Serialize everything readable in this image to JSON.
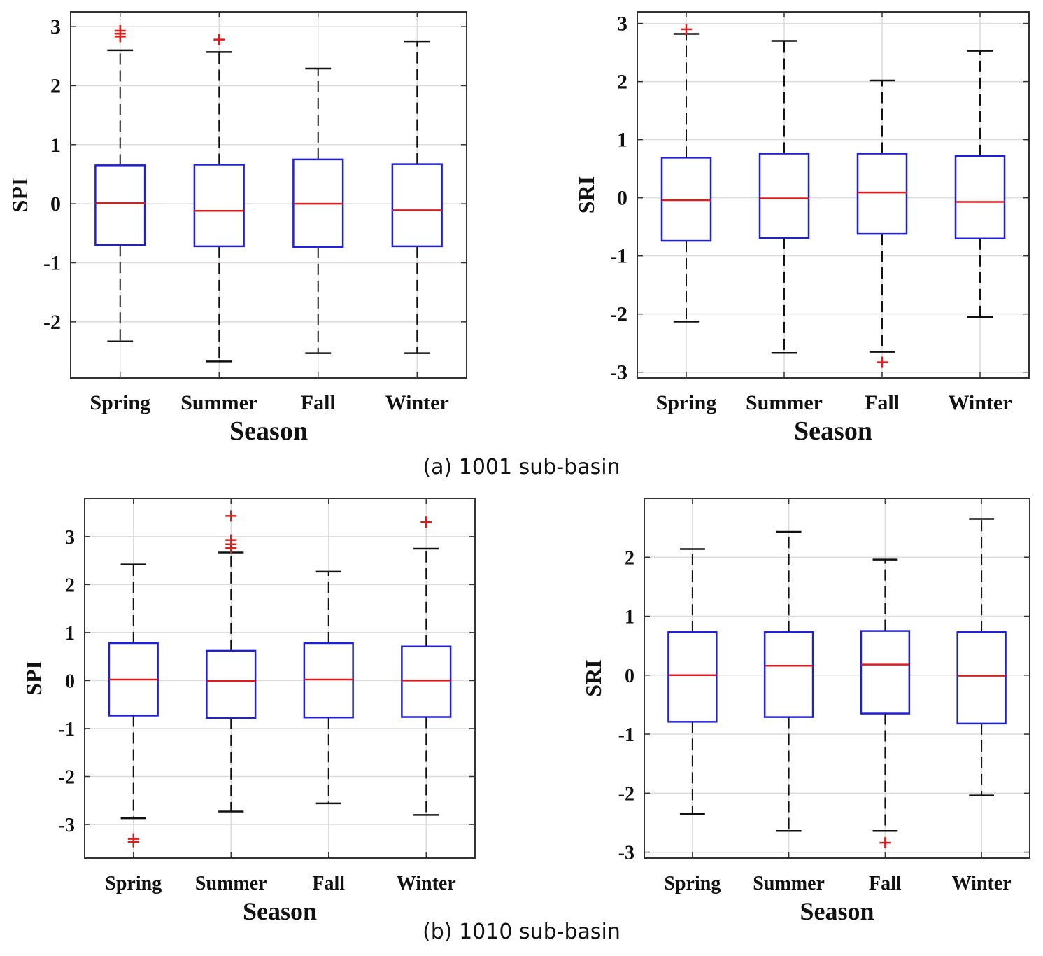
{
  "captions": {
    "a": "(a) 1001 sub-basin",
    "b": "(b) 1010 sub-basin"
  },
  "colors": {
    "box": "#1f1fd6",
    "median": "#e01b1b",
    "whisker": "#111111",
    "outlier": "#e01b1b",
    "grid": "#dcdcdc",
    "axes": "#333333"
  },
  "chart_data": [
    {
      "type": "box",
      "panel": "a-left",
      "title": "",
      "xlabel": "Season",
      "ylabel": "SPI",
      "categories": [
        "Spring",
        "Summer",
        "Fall",
        "Winter"
      ],
      "ylim": [
        -2.95,
        3.25
      ],
      "yticks": [
        -2,
        -1,
        0,
        1,
        2,
        3
      ],
      "ytick_labels": [
        "-2",
        "-1",
        "0",
        "1",
        "2",
        "3"
      ],
      "grid": true,
      "boxes": [
        {
          "min": -2.33,
          "q1": -0.7,
          "median": 0.01,
          "q3": 0.65,
          "max": 2.6,
          "outliers": [
            2.83,
            2.88,
            2.93
          ]
        },
        {
          "min": -2.67,
          "q1": -0.72,
          "median": -0.12,
          "q3": 0.66,
          "max": 2.57,
          "outliers": [
            2.78
          ]
        },
        {
          "min": -2.53,
          "q1": -0.73,
          "median": 0.0,
          "q3": 0.75,
          "max": 2.29,
          "outliers": []
        },
        {
          "min": -2.53,
          "q1": -0.72,
          "median": -0.11,
          "q3": 0.67,
          "max": 2.75,
          "outliers": []
        }
      ]
    },
    {
      "type": "box",
      "panel": "a-right",
      "title": "",
      "xlabel": "Season",
      "ylabel": "SRI",
      "categories": [
        "Spring",
        "Summer",
        "Fall",
        "Winter"
      ],
      "ylim": [
        -3.1,
        3.2
      ],
      "yticks": [
        -3,
        -2,
        -1,
        0,
        1,
        2,
        3
      ],
      "ytick_labels": [
        "-3",
        "-2",
        "-1",
        "0",
        "1",
        "2",
        "3"
      ],
      "grid": true,
      "boxes": [
        {
          "min": -2.13,
          "q1": -0.74,
          "median": -0.04,
          "q3": 0.69,
          "max": 2.82,
          "outliers": [
            2.9
          ]
        },
        {
          "min": -2.67,
          "q1": -0.69,
          "median": -0.01,
          "q3": 0.76,
          "max": 2.7,
          "outliers": []
        },
        {
          "min": -2.65,
          "q1": -0.62,
          "median": 0.09,
          "q3": 0.76,
          "max": 2.02,
          "outliers": [
            -2.83
          ]
        },
        {
          "min": -2.05,
          "q1": -0.7,
          "median": -0.07,
          "q3": 0.72,
          "max": 2.53,
          "outliers": []
        }
      ]
    },
    {
      "type": "box",
      "panel": "b-left",
      "title": "",
      "xlabel": "Season",
      "ylabel": "SPI",
      "categories": [
        "Spring",
        "Summer",
        "Fall",
        "Winter"
      ],
      "ylim": [
        -3.7,
        3.8
      ],
      "yticks": [
        -3,
        -2,
        -1,
        0,
        1,
        2,
        3
      ],
      "ytick_labels": [
        "-3",
        "-2",
        "-1",
        "0",
        "1",
        "2",
        "3"
      ],
      "grid": true,
      "boxes": [
        {
          "min": -2.87,
          "q1": -0.73,
          "median": 0.02,
          "q3": 0.78,
          "max": 2.42,
          "outliers": [
            -3.3,
            -3.36
          ]
        },
        {
          "min": -2.73,
          "q1": -0.78,
          "median": -0.01,
          "q3": 0.62,
          "max": 2.67,
          "outliers": [
            2.76,
            2.84,
            2.93,
            3.43
          ]
        },
        {
          "min": -2.56,
          "q1": -0.77,
          "median": 0.02,
          "q3": 0.78,
          "max": 2.27,
          "outliers": []
        },
        {
          "min": -2.8,
          "q1": -0.76,
          "median": 0.0,
          "q3": 0.71,
          "max": 2.75,
          "outliers": [
            3.3
          ]
        }
      ]
    },
    {
      "type": "box",
      "panel": "b-right",
      "title": "",
      "xlabel": "Season",
      "ylabel": "SRI",
      "categories": [
        "Spring",
        "Summer",
        "Fall",
        "Winter"
      ],
      "ylim": [
        -3.1,
        3.0
      ],
      "yticks": [
        -3,
        -2,
        -1,
        0,
        1,
        2
      ],
      "ytick_labels": [
        "-3",
        "-2",
        "-1",
        "0",
        "1",
        "2"
      ],
      "grid": true,
      "boxes": [
        {
          "min": -2.35,
          "q1": -0.79,
          "median": 0.0,
          "q3": 0.73,
          "max": 2.14,
          "outliers": []
        },
        {
          "min": -2.64,
          "q1": -0.71,
          "median": 0.16,
          "q3": 0.73,
          "max": 2.43,
          "outliers": []
        },
        {
          "min": -2.64,
          "q1": -0.65,
          "median": 0.18,
          "q3": 0.75,
          "max": 1.96,
          "outliers": [
            -2.84
          ]
        },
        {
          "min": -2.04,
          "q1": -0.82,
          "median": -0.01,
          "q3": 0.73,
          "max": 2.65,
          "outliers": []
        }
      ]
    }
  ]
}
